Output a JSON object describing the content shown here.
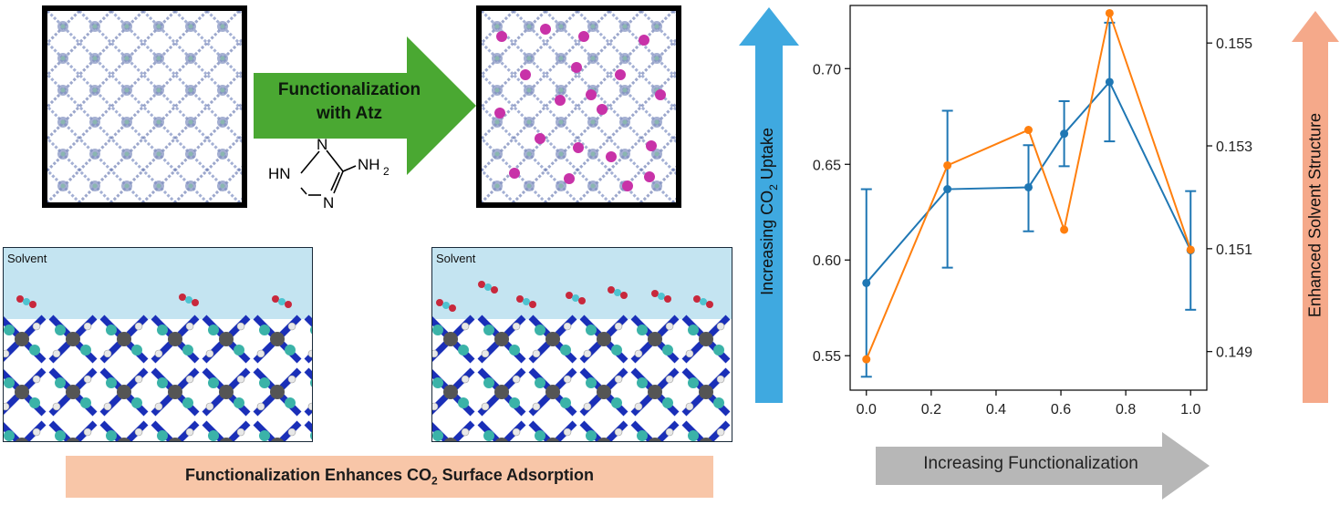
{
  "top": {
    "arrow_line1": "Functionalization",
    "arrow_line2": "with Atz",
    "atz_hn": "HN",
    "atz_n1": "N",
    "atz_n2": "N",
    "atz_nh2": "NH",
    "atz_sub": "2"
  },
  "panels": {
    "left_solvent": "Solvent",
    "right_solvent": "Solvent"
  },
  "bottom_banner": {
    "text_before": "Functionalization Enhances CO",
    "sub": "2",
    "text_after": " Surface Adsorption"
  },
  "left_arrow": {
    "text_before": "Increasing CO",
    "sub": "2",
    "text_after": " Uptake",
    "color": "#3fa9e0"
  },
  "right_arrow": {
    "text": "Enhanced Solvent Structure",
    "color": "#f5a98a"
  },
  "x_banner": {
    "text": "Increasing Functionalization"
  },
  "chart_data": {
    "type": "line",
    "x": [
      0.0,
      0.25,
      0.5,
      0.61,
      0.75,
      1.0
    ],
    "xlim": [
      -0.05,
      1.05
    ],
    "xticks": [
      "0.0",
      "0.2",
      "0.4",
      "0.6",
      "0.8",
      "1.0"
    ],
    "xtick_values": [
      0.0,
      0.2,
      0.4,
      0.6,
      0.8,
      1.0
    ],
    "y_left_lim": [
      0.532,
      0.733
    ],
    "y_left_ticks": [
      "0.55",
      "0.60",
      "0.65",
      "0.70"
    ],
    "y_left_tick_values": [
      0.55,
      0.6,
      0.65,
      0.7
    ],
    "y_right_lim": [
      0.14825,
      0.15573
    ],
    "y_right_ticks": [
      "0.149",
      "0.151",
      "0.153",
      "0.155"
    ],
    "y_right_tick_values": [
      0.149,
      0.151,
      0.153,
      0.155
    ],
    "series": [
      {
        "axis": "left",
        "color": "#1f77b4",
        "values": [
          0.588,
          0.637,
          0.638,
          0.666,
          0.693,
          0.605
        ],
        "err_low": [
          0.539,
          0.596,
          0.615,
          0.649,
          0.662,
          0.574
        ],
        "err_high": [
          0.637,
          0.678,
          0.66,
          0.683,
          0.724,
          0.636
        ]
      },
      {
        "axis": "right",
        "color": "#ff7f0e",
        "values": [
          0.14885,
          0.15262,
          0.15331,
          0.15137,
          0.15558,
          0.15098
        ]
      }
    ]
  }
}
